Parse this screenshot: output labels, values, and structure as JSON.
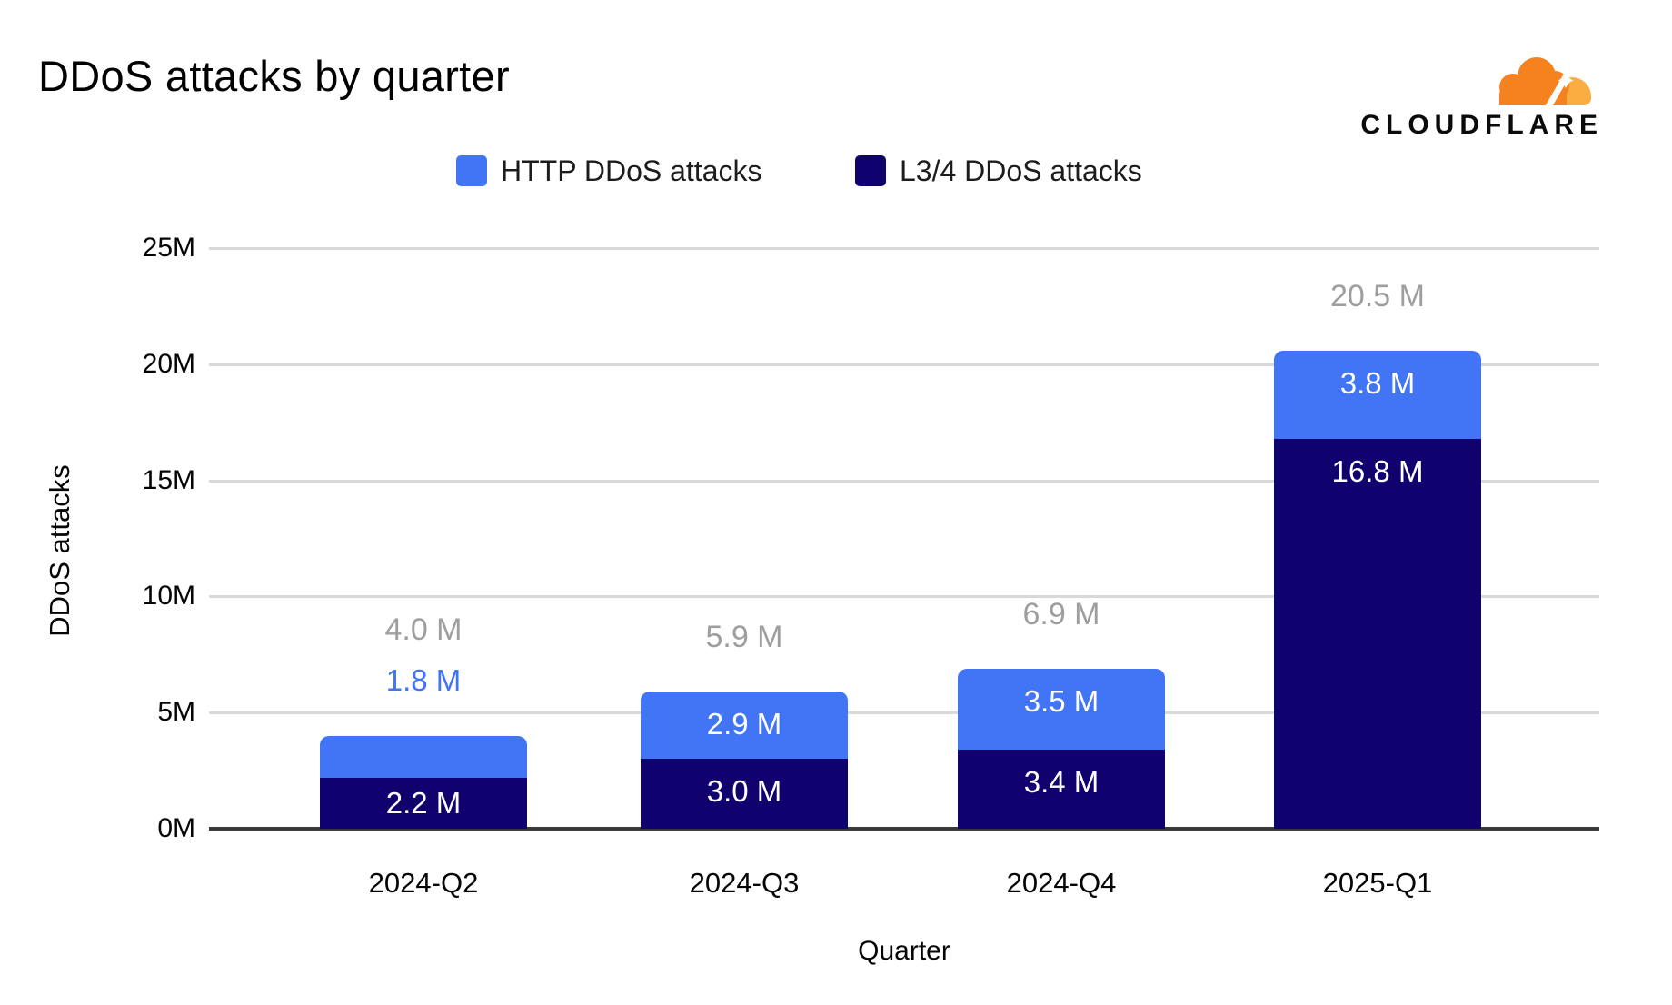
{
  "title": "DDoS attacks by quarter",
  "brand": "CLOUDFLARE",
  "legend": [
    {
      "label": "HTTP DDoS attacks",
      "color": "#4175F5"
    },
    {
      "label": "L3/4 DDoS attacks",
      "color": "#10026E"
    }
  ],
  "chart_data": {
    "type": "bar",
    "stacked": true,
    "title": "DDoS attacks by quarter",
    "xlabel": "Quarter",
    "ylabel": "DDoS attacks",
    "categories": [
      "2024-Q2",
      "2024-Q3",
      "2024-Q4",
      "2025-Q1"
    ],
    "series": [
      {
        "name": "HTTP DDoS attacks",
        "color": "#4175F5",
        "values": [
          1.8,
          2.9,
          3.5,
          3.8
        ],
        "value_labels": [
          "1.8 M",
          "2.9 M",
          "3.5 M",
          "3.8 M"
        ]
      },
      {
        "name": "L3/4 DDoS attacks",
        "color": "#10026E",
        "values": [
          2.2,
          3.0,
          3.4,
          16.8
        ],
        "value_labels": [
          "2.2 M",
          "3.0 M",
          "3.4 M",
          "16.8 M"
        ]
      }
    ],
    "totals": [
      4.0,
      5.9,
      6.9,
      20.5
    ],
    "total_labels": [
      "4.0 M",
      "5.9 M",
      "6.9 M",
      "20.5 M"
    ],
    "unit": "M",
    "ylim": [
      0,
      25
    ],
    "yticks": [
      {
        "value": 0,
        "label": "0M"
      },
      {
        "value": 5,
        "label": "5M"
      },
      {
        "value": 10,
        "label": "10M"
      },
      {
        "value": 15,
        "label": "15M"
      },
      {
        "value": 20,
        "label": "20M"
      },
      {
        "value": 25,
        "label": "25M"
      }
    ],
    "grid": true,
    "legend_position": "top"
  },
  "colors": {
    "http_blue": "#4175F5",
    "l34_navy": "#10026E",
    "total_label_gray": "#9E9E9E",
    "gridline": "#D9D9D9",
    "axis_line": "#3A3A3A",
    "background": "#FFFFFF",
    "logo_orange": "#F6821F",
    "logo_light_orange": "#FBAD41",
    "wordmark_black": "#0B0B0B"
  }
}
